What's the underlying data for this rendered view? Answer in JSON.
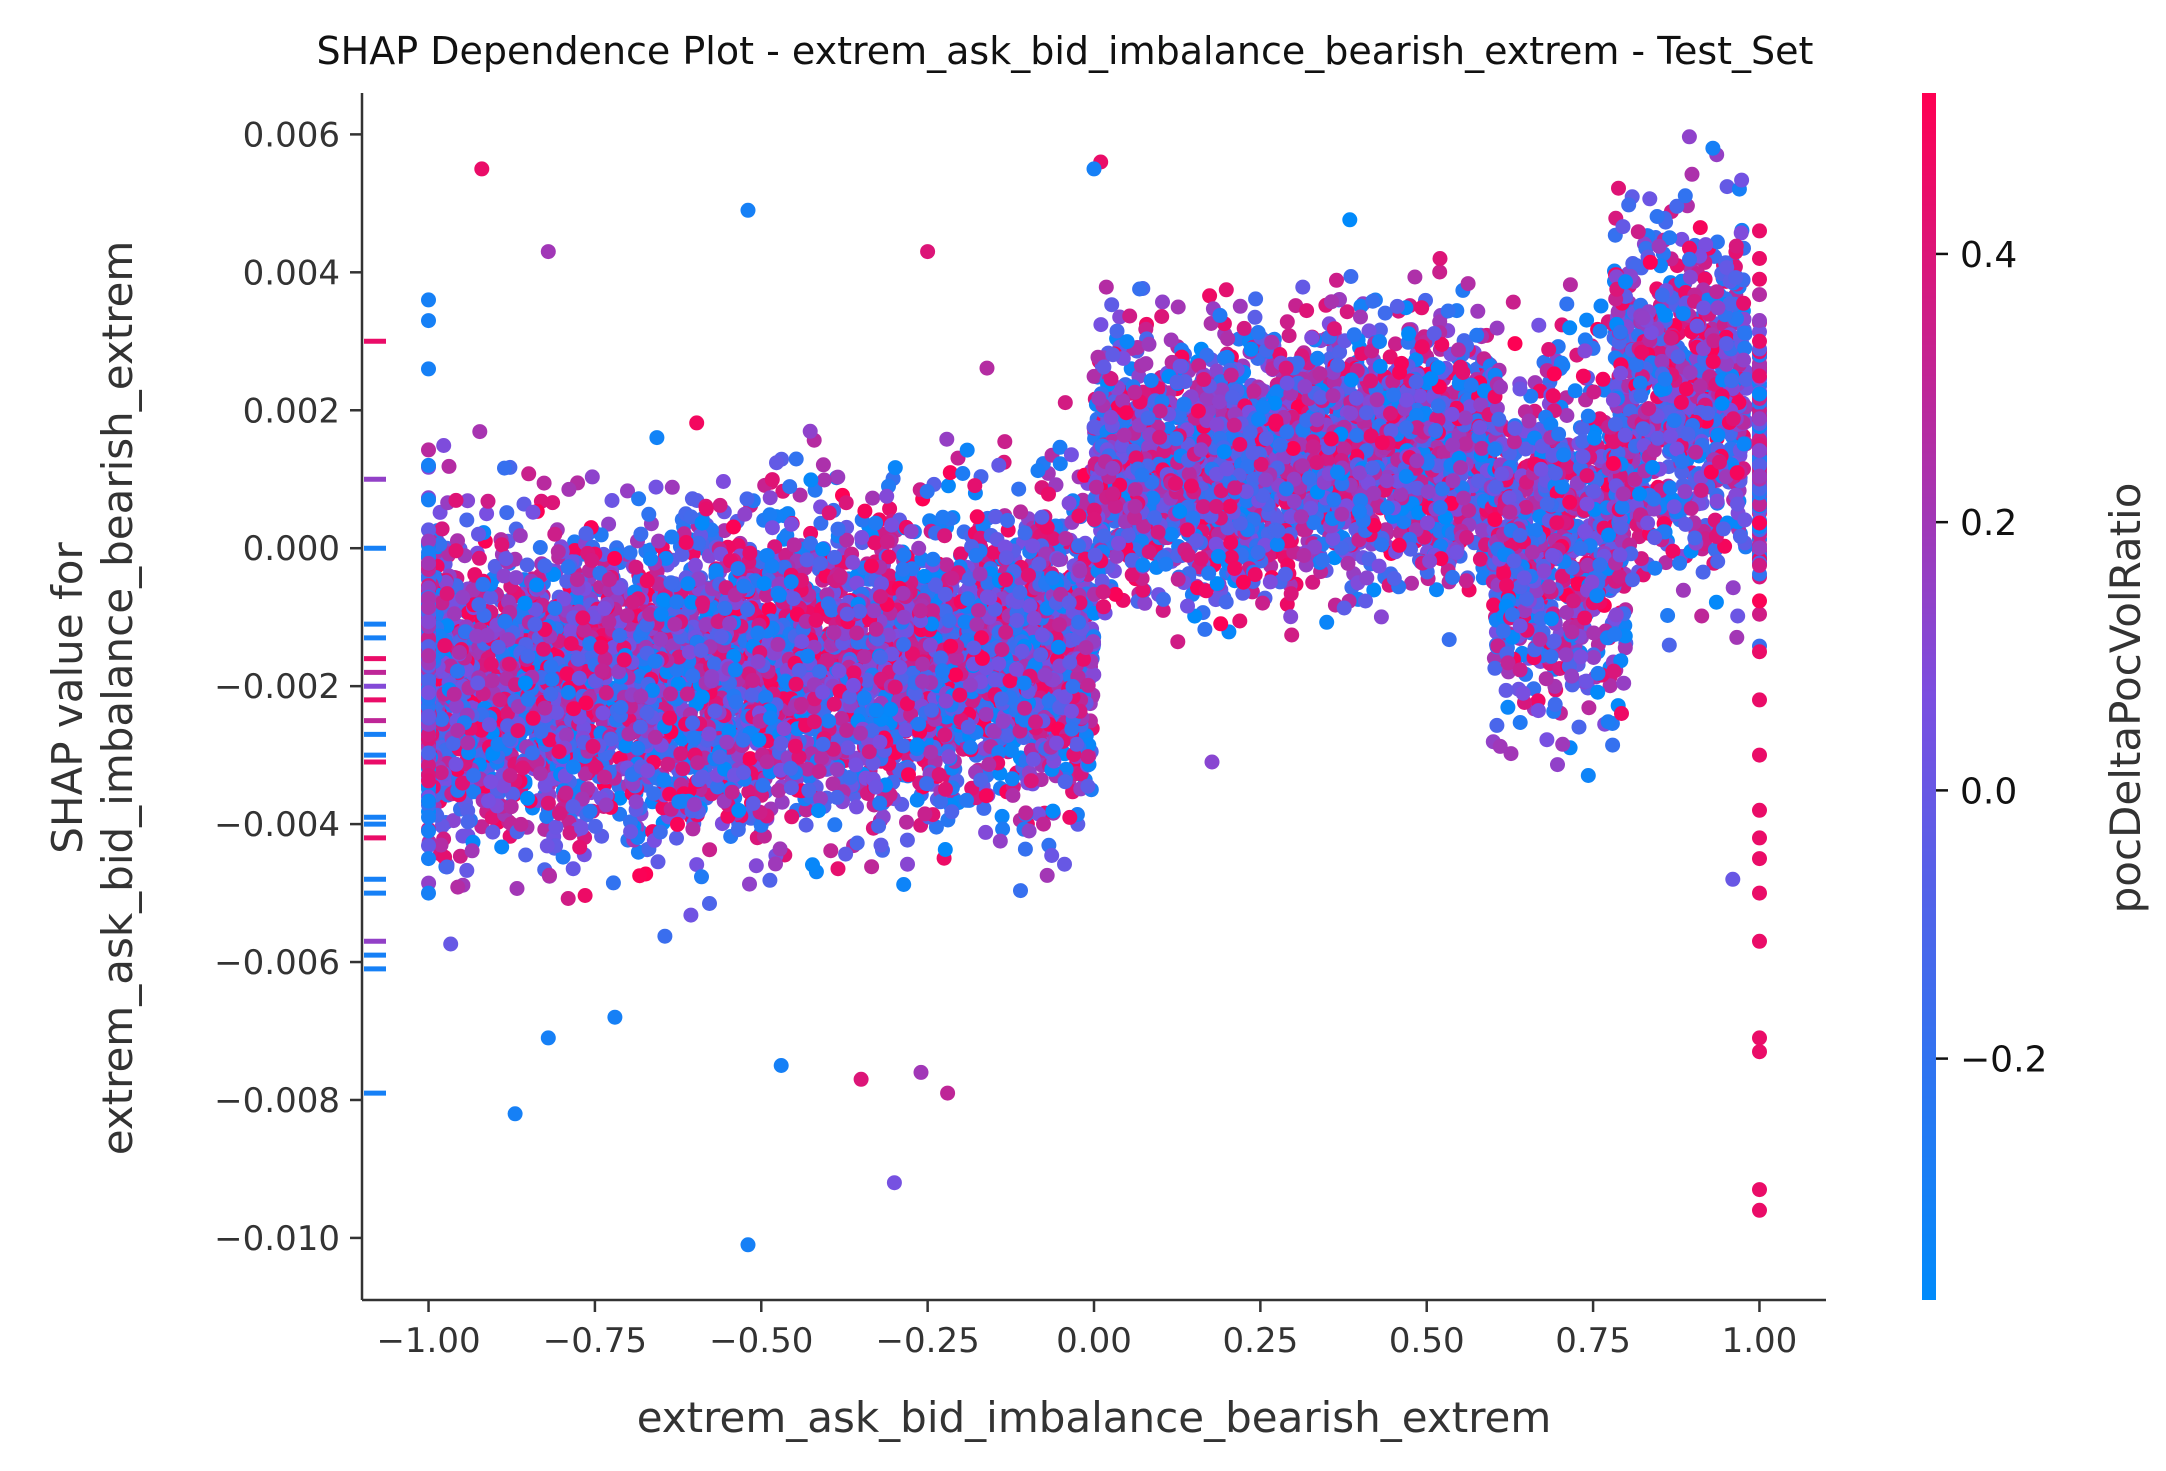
{
  "chart_data": {
    "type": "scatter",
    "title": "SHAP Dependence Plot - extrem_ask_bid_imbalance_bearish_extrem - Test_Set",
    "xlabel": "extrem_ask_bid_imbalance_bearish_extrem",
    "ylabel_line1": "SHAP value for",
    "ylabel_line2": "extrem_ask_bid_imbalance_bearish_extrem",
    "xlim": [
      -1.1,
      1.1
    ],
    "ylim": [
      -0.0109,
      0.0066
    ],
    "x_ticks": [
      -1.0,
      -0.75,
      -0.5,
      -0.25,
      0.0,
      0.25,
      0.5,
      0.75,
      1.0
    ],
    "x_tick_labels": [
      "−1.00",
      "−0.75",
      "−0.50",
      "−0.25",
      "0.00",
      "0.25",
      "0.50",
      "0.75",
      "1.00"
    ],
    "y_ticks": [
      0.006,
      0.004,
      0.002,
      0.0,
      -0.002,
      -0.004,
      -0.006,
      -0.008,
      -0.01
    ],
    "y_tick_labels": [
      "0.006",
      "0.004",
      "0.002",
      "0.000",
      "−0.002",
      "−0.004",
      "−0.006",
      "−0.008",
      "−0.010"
    ],
    "colorbar": {
      "label": "pocDeltaPocVolRatio",
      "range": [
        -0.38,
        0.52
      ],
      "ticks": [
        0.4,
        0.2,
        0.0,
        -0.2
      ],
      "tick_labels": [
        "0.4",
        "0.2",
        "0.0",
        "−0.2"
      ],
      "color_low": "#008bfb",
      "color_mid": "#7b4ee0",
      "color_high": "#ff0052"
    },
    "grid": false,
    "point_clusters": [
      {
        "x_range": [
          -1.0,
          0.0
        ],
        "y_center": -0.0018,
        "y_spread": 0.0011,
        "trend": 0.0003,
        "count": 5200
      },
      {
        "x_range": [
          0.0,
          0.6
        ],
        "y_center": 0.0013,
        "y_spread": 0.0009,
        "trend": 0.0002,
        "count": 2800
      },
      {
        "x_range": [
          0.6,
          0.8
        ],
        "y_center": 0.0002,
        "y_spread": 0.0012,
        "trend": 0.0,
        "count": 900
      },
      {
        "x_range": [
          0.78,
          0.98
        ],
        "y_center": 0.0022,
        "y_spread": 0.0012,
        "trend": 0.0,
        "count": 900
      }
    ],
    "edge_points": {
      "x_minus_one": [
        -0.0039,
        -0.0041,
        -0.0045,
        -0.005,
        0.0036,
        0.0033,
        0.0026,
        0.0012,
        0.0007
      ],
      "x_plus_one": [
        -0.0093,
        -0.0096,
        -0.0071,
        -0.0073,
        -0.0057,
        -0.005,
        -0.0045,
        -0.0042,
        -0.0038,
        -0.003,
        -0.0022,
        -0.0015,
        0.0046,
        0.0042,
        0.0039,
        0.003
      ]
    },
    "outliers": [
      {
        "x": -0.92,
        "y": 0.0055,
        "c": 0.45
      },
      {
        "x": -0.52,
        "y": 0.0049,
        "c": -0.3
      },
      {
        "x": 0.01,
        "y": 0.0056,
        "c": 0.45
      },
      {
        "x": 0.0,
        "y": 0.0055,
        "c": -0.3
      },
      {
        "x": 0.93,
        "y": 0.0058,
        "c": -0.3
      },
      {
        "x": -0.52,
        "y": -0.0101,
        "c": -0.3
      },
      {
        "x": -0.3,
        "y": -0.0092,
        "c": 0.05
      },
      {
        "x": -0.87,
        "y": -0.0082,
        "c": -0.3
      },
      {
        "x": -0.82,
        "y": -0.0071,
        "c": -0.3
      },
      {
        "x": -0.72,
        "y": -0.0068,
        "c": -0.3
      },
      {
        "x": -0.47,
        "y": -0.0075,
        "c": -0.3
      },
      {
        "x": -0.35,
        "y": -0.0077,
        "c": 0.4
      },
      {
        "x": -0.22,
        "y": -0.0079,
        "c": 0.3
      },
      {
        "x": -0.26,
        "y": -0.0076,
        "c": 0.2
      },
      {
        "x": -0.82,
        "y": 0.0043,
        "c": 0.2
      },
      {
        "x": 0.52,
        "y": 0.0042,
        "c": 0.4
      },
      {
        "x": -0.25,
        "y": 0.0043,
        "c": 0.4
      },
      {
        "x": 0.96,
        "y": -0.0048,
        "c": 0.0
      }
    ],
    "rug_marks": [
      {
        "y": 0.003,
        "c": 0.45
      },
      {
        "y": 0.001,
        "c": 0.15
      },
      {
        "y": 0.0,
        "c": -0.3
      },
      {
        "y": -0.0011,
        "c": -0.3
      },
      {
        "y": -0.0013,
        "c": -0.3
      },
      {
        "y": -0.0016,
        "c": 0.45
      },
      {
        "y": -0.0018,
        "c": 0.3
      },
      {
        "y": -0.002,
        "c": 0.1
      },
      {
        "y": -0.0022,
        "c": 0.45
      },
      {
        "y": -0.0025,
        "c": 0.3
      },
      {
        "y": -0.0027,
        "c": -0.3
      },
      {
        "y": -0.003,
        "c": -0.3
      },
      {
        "y": -0.0031,
        "c": 0.45
      },
      {
        "y": -0.0039,
        "c": -0.3
      },
      {
        "y": -0.004,
        "c": -0.3
      },
      {
        "y": -0.0042,
        "c": 0.45
      },
      {
        "y": -0.0048,
        "c": -0.3
      },
      {
        "y": -0.005,
        "c": -0.3
      },
      {
        "y": -0.0057,
        "c": 0.15
      },
      {
        "y": -0.0059,
        "c": -0.3
      },
      {
        "y": -0.0061,
        "c": -0.3
      },
      {
        "y": -0.0079,
        "c": -0.3
      }
    ]
  }
}
